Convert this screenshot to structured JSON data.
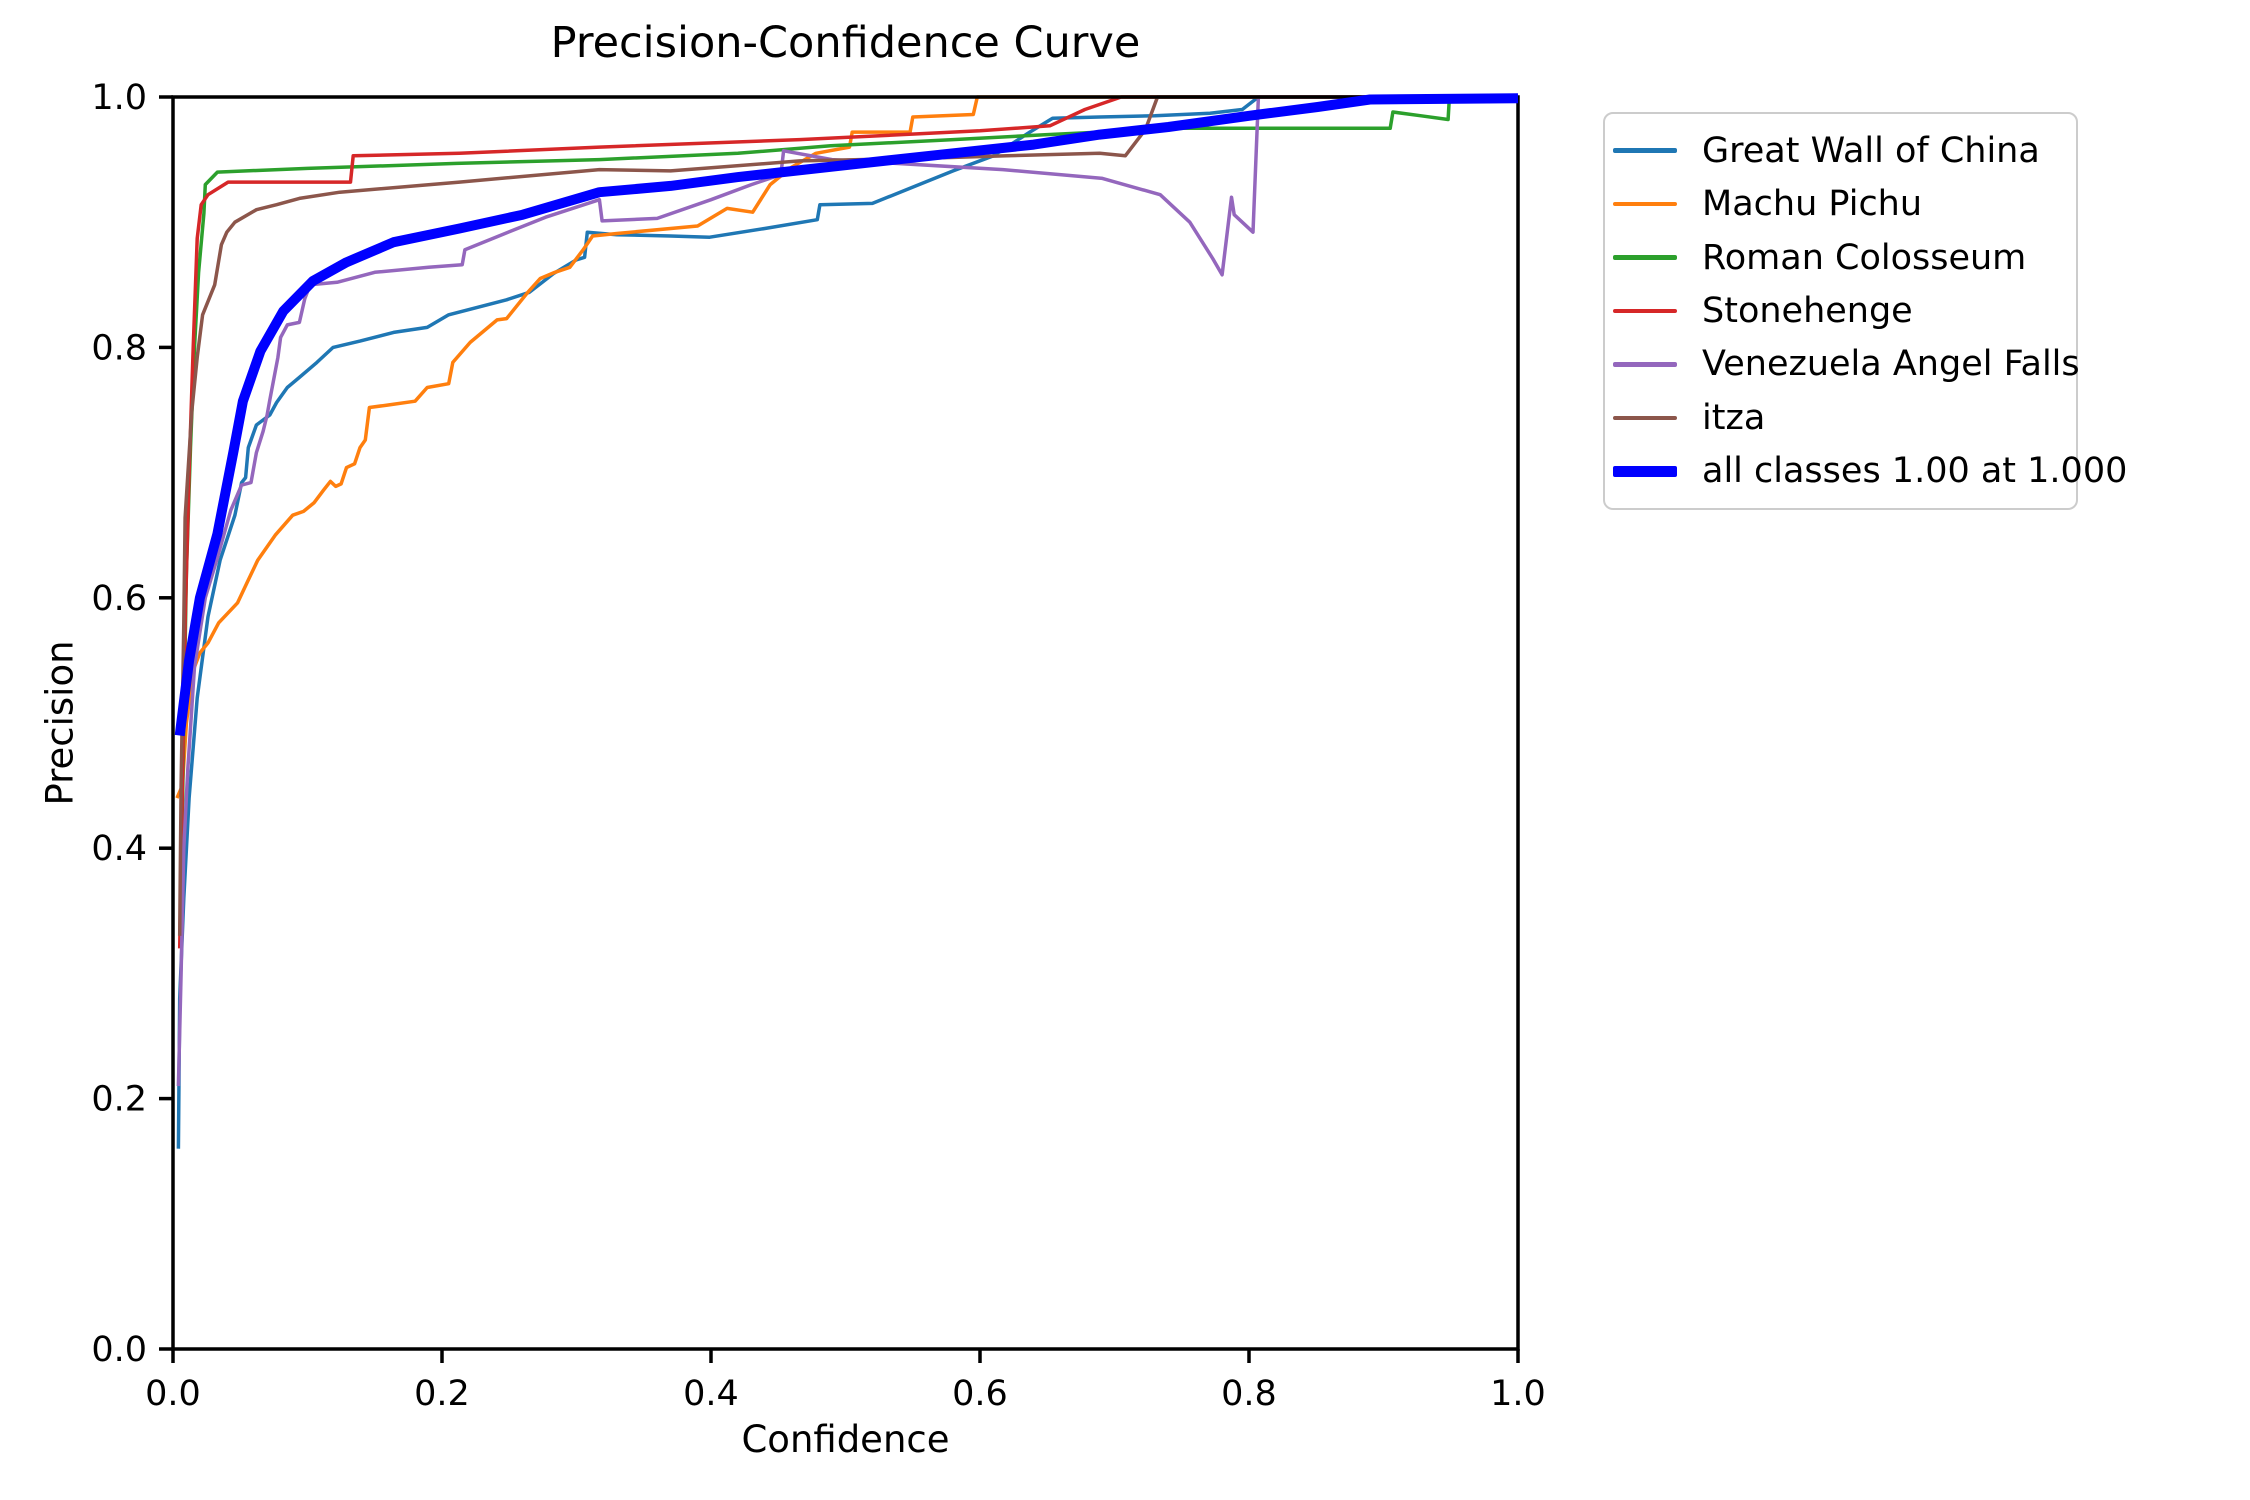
{
  "chart_data": {
    "type": "line",
    "title": "Precision-Confidence Curve",
    "xlabel": "Confidence",
    "ylabel": "Precision",
    "xlim": [
      0.0,
      1.0
    ],
    "ylim": [
      0.0,
      1.0
    ],
    "grid": false,
    "legend_position": "outside-right",
    "x_ticks": [
      {
        "value": 0.0,
        "label": "0.0"
      },
      {
        "value": 0.2,
        "label": "0.2"
      },
      {
        "value": 0.4,
        "label": "0.4"
      },
      {
        "value": 0.6,
        "label": "0.6"
      },
      {
        "value": 0.8,
        "label": "0.8"
      },
      {
        "value": 1.0,
        "label": "1.0"
      }
    ],
    "y_ticks": [
      {
        "value": 0.0,
        "label": "0.0"
      },
      {
        "value": 0.2,
        "label": "0.2"
      },
      {
        "value": 0.4,
        "label": "0.4"
      },
      {
        "value": 0.6,
        "label": "0.6"
      },
      {
        "value": 0.8,
        "label": "0.8"
      },
      {
        "value": 1.0,
        "label": "1.0"
      }
    ],
    "axis_color": "#000000",
    "series": [
      {
        "name": "Great Wall of China",
        "color": "#1f77b4",
        "line_width": 3.5,
        "points": [
          [
            0.004,
            0.16
          ],
          [
            0.005,
            0.28
          ],
          [
            0.008,
            0.36
          ],
          [
            0.012,
            0.44
          ],
          [
            0.018,
            0.52
          ],
          [
            0.026,
            0.585
          ],
          [
            0.035,
            0.63
          ],
          [
            0.046,
            0.666
          ],
          [
            0.051,
            0.692
          ],
          [
            0.054,
            0.696
          ],
          [
            0.056,
            0.72
          ],
          [
            0.062,
            0.738
          ],
          [
            0.072,
            0.746
          ],
          [
            0.077,
            0.756
          ],
          [
            0.085,
            0.768
          ],
          [
            0.094,
            0.776
          ],
          [
            0.107,
            0.788
          ],
          [
            0.119,
            0.8
          ],
          [
            0.139,
            0.805
          ],
          [
            0.164,
            0.812
          ],
          [
            0.189,
            0.816
          ],
          [
            0.205,
            0.826
          ],
          [
            0.248,
            0.838
          ],
          [
            0.265,
            0.844
          ],
          [
            0.283,
            0.859
          ],
          [
            0.3,
            0.87
          ],
          [
            0.306,
            0.872
          ],
          [
            0.308,
            0.892
          ],
          [
            0.33,
            0.89
          ],
          [
            0.37,
            0.889
          ],
          [
            0.399,
            0.888
          ],
          [
            0.44,
            0.895
          ],
          [
            0.479,
            0.902
          ],
          [
            0.481,
            0.914
          ],
          [
            0.52,
            0.915
          ],
          [
            0.55,
            0.928
          ],
          [
            0.58,
            0.941
          ],
          [
            0.61,
            0.953
          ],
          [
            0.637,
            0.972
          ],
          [
            0.654,
            0.983
          ],
          [
            0.689,
            0.984
          ],
          [
            0.73,
            0.985
          ],
          [
            0.771,
            0.987
          ],
          [
            0.795,
            0.99
          ],
          [
            0.807,
            1.0
          ],
          [
            1.0,
            1.0
          ]
        ]
      },
      {
        "name": "Machu Pichu",
        "color": "#ff7f0e",
        "line_width": 3.5,
        "points": [
          [
            0.003,
            0.44
          ],
          [
            0.007,
            0.45
          ],
          [
            0.01,
            0.5
          ],
          [
            0.015,
            0.542
          ],
          [
            0.02,
            0.556
          ],
          [
            0.026,
            0.564
          ],
          [
            0.034,
            0.58
          ],
          [
            0.048,
            0.596
          ],
          [
            0.055,
            0.612
          ],
          [
            0.063,
            0.63
          ],
          [
            0.076,
            0.65
          ],
          [
            0.089,
            0.666
          ],
          [
            0.097,
            0.669
          ],
          [
            0.105,
            0.676
          ],
          [
            0.112,
            0.686
          ],
          [
            0.117,
            0.693
          ],
          [
            0.121,
            0.689
          ],
          [
            0.125,
            0.691
          ],
          [
            0.129,
            0.704
          ],
          [
            0.135,
            0.707
          ],
          [
            0.139,
            0.72
          ],
          [
            0.143,
            0.726
          ],
          [
            0.146,
            0.752
          ],
          [
            0.16,
            0.754
          ],
          [
            0.18,
            0.757
          ],
          [
            0.189,
            0.768
          ],
          [
            0.205,
            0.771
          ],
          [
            0.208,
            0.788
          ],
          [
            0.221,
            0.804
          ],
          [
            0.241,
            0.822
          ],
          [
            0.248,
            0.823
          ],
          [
            0.263,
            0.843
          ],
          [
            0.273,
            0.855
          ],
          [
            0.284,
            0.86
          ],
          [
            0.295,
            0.864
          ],
          [
            0.305,
            0.878
          ],
          [
            0.312,
            0.889
          ],
          [
            0.33,
            0.891
          ],
          [
            0.39,
            0.897
          ],
          [
            0.412,
            0.911
          ],
          [
            0.431,
            0.908
          ],
          [
            0.444,
            0.93
          ],
          [
            0.46,
            0.944
          ],
          [
            0.478,
            0.955
          ],
          [
            0.503,
            0.96
          ],
          [
            0.505,
            0.972
          ],
          [
            0.548,
            0.972
          ],
          [
            0.55,
            0.984
          ],
          [
            0.595,
            0.986
          ],
          [
            0.598,
            1.0
          ],
          [
            1.0,
            1.0
          ]
        ]
      },
      {
        "name": "Roman Colosseum",
        "color": "#2ca02c",
        "line_width": 3.5,
        "points": [
          [
            0.006,
            0.36
          ],
          [
            0.008,
            0.5
          ],
          [
            0.01,
            0.62
          ],
          [
            0.013,
            0.72
          ],
          [
            0.016,
            0.8
          ],
          [
            0.019,
            0.86
          ],
          [
            0.023,
            0.907
          ],
          [
            0.024,
            0.93
          ],
          [
            0.033,
            0.94
          ],
          [
            0.1,
            0.943
          ],
          [
            0.211,
            0.947
          ],
          [
            0.317,
            0.95
          ],
          [
            0.42,
            0.955
          ],
          [
            0.489,
            0.961
          ],
          [
            0.58,
            0.966
          ],
          [
            0.65,
            0.97
          ],
          [
            0.689,
            0.972
          ],
          [
            0.751,
            0.975
          ],
          [
            0.85,
            0.975
          ],
          [
            0.905,
            0.975
          ],
          [
            0.907,
            0.988
          ],
          [
            0.928,
            0.985
          ],
          [
            0.948,
            0.982
          ],
          [
            0.949,
            1.0
          ],
          [
            1.0,
            1.0
          ]
        ]
      },
      {
        "name": "Stonehenge",
        "color": "#d62728",
        "line_width": 3.5,
        "points": [
          [
            0.005,
            0.32
          ],
          [
            0.007,
            0.45
          ],
          [
            0.009,
            0.58
          ],
          [
            0.012,
            0.7
          ],
          [
            0.015,
            0.8
          ],
          [
            0.018,
            0.887
          ],
          [
            0.021,
            0.914
          ],
          [
            0.026,
            0.922
          ],
          [
            0.041,
            0.932
          ],
          [
            0.132,
            0.932
          ],
          [
            0.134,
            0.953
          ],
          [
            0.213,
            0.955
          ],
          [
            0.317,
            0.96
          ],
          [
            0.466,
            0.966
          ],
          [
            0.6,
            0.973
          ],
          [
            0.652,
            0.977
          ],
          [
            0.678,
            0.99
          ],
          [
            0.705,
            1.0
          ],
          [
            1.0,
            1.0
          ]
        ]
      },
      {
        "name": "Venezuela Angel Falls",
        "color": "#9467bd",
        "line_width": 3.5,
        "points": [
          [
            0.004,
            0.21
          ],
          [
            0.006,
            0.3
          ],
          [
            0.008,
            0.4
          ],
          [
            0.011,
            0.463
          ],
          [
            0.016,
            0.545
          ],
          [
            0.024,
            0.6
          ],
          [
            0.033,
            0.632
          ],
          [
            0.043,
            0.67
          ],
          [
            0.051,
            0.69
          ],
          [
            0.058,
            0.692
          ],
          [
            0.062,
            0.716
          ],
          [
            0.067,
            0.733
          ],
          [
            0.07,
            0.746
          ],
          [
            0.072,
            0.758
          ],
          [
            0.078,
            0.792
          ],
          [
            0.08,
            0.808
          ],
          [
            0.085,
            0.818
          ],
          [
            0.094,
            0.82
          ],
          [
            0.098,
            0.839
          ],
          [
            0.102,
            0.85
          ],
          [
            0.122,
            0.852
          ],
          [
            0.15,
            0.86
          ],
          [
            0.19,
            0.864
          ],
          [
            0.215,
            0.866
          ],
          [
            0.217,
            0.878
          ],
          [
            0.24,
            0.888
          ],
          [
            0.277,
            0.904
          ],
          [
            0.317,
            0.918
          ],
          [
            0.319,
            0.901
          ],
          [
            0.36,
            0.903
          ],
          [
            0.4,
            0.918
          ],
          [
            0.43,
            0.93
          ],
          [
            0.452,
            0.938
          ],
          [
            0.454,
            0.957
          ],
          [
            0.49,
            0.95
          ],
          [
            0.617,
            0.942
          ],
          [
            0.691,
            0.935
          ],
          [
            0.734,
            0.922
          ],
          [
            0.756,
            0.9
          ],
          [
            0.773,
            0.871
          ],
          [
            0.78,
            0.858
          ],
          [
            0.787,
            0.92
          ],
          [
            0.789,
            0.906
          ],
          [
            0.803,
            0.892
          ],
          [
            0.807,
            1.0
          ],
          [
            1.0,
            1.0
          ]
        ]
      },
      {
        "name": "itza",
        "color": "#8c564b",
        "line_width": 3.5,
        "points": [
          [
            0.005,
            0.33
          ],
          [
            0.006,
            0.45
          ],
          [
            0.008,
            0.58
          ],
          [
            0.009,
            0.664
          ],
          [
            0.014,
            0.749
          ],
          [
            0.018,
            0.792
          ],
          [
            0.022,
            0.826
          ],
          [
            0.031,
            0.85
          ],
          [
            0.036,
            0.882
          ],
          [
            0.04,
            0.892
          ],
          [
            0.046,
            0.9
          ],
          [
            0.062,
            0.91
          ],
          [
            0.077,
            0.914
          ],
          [
            0.094,
            0.919
          ],
          [
            0.124,
            0.924
          ],
          [
            0.213,
            0.932
          ],
          [
            0.317,
            0.942
          ],
          [
            0.37,
            0.941
          ],
          [
            0.466,
            0.949
          ],
          [
            0.56,
            0.951
          ],
          [
            0.62,
            0.953
          ],
          [
            0.689,
            0.955
          ],
          [
            0.708,
            0.953
          ],
          [
            0.723,
            0.974
          ],
          [
            0.732,
            1.0
          ],
          [
            1.0,
            1.0
          ]
        ]
      },
      {
        "name": "all classes 1.00 at 1.000",
        "color": "#0000ff",
        "line_width": 10,
        "points": [
          [
            0.005,
            0.49
          ],
          [
            0.012,
            0.55
          ],
          [
            0.02,
            0.6
          ],
          [
            0.033,
            0.651
          ],
          [
            0.045,
            0.717
          ],
          [
            0.052,
            0.757
          ],
          [
            0.065,
            0.797
          ],
          [
            0.082,
            0.829
          ],
          [
            0.104,
            0.853
          ],
          [
            0.129,
            0.868
          ],
          [
            0.164,
            0.884
          ],
          [
            0.213,
            0.895
          ],
          [
            0.26,
            0.906
          ],
          [
            0.317,
            0.924
          ],
          [
            0.37,
            0.929
          ],
          [
            0.42,
            0.936
          ],
          [
            0.47,
            0.942
          ],
          [
            0.52,
            0.948
          ],
          [
            0.58,
            0.955
          ],
          [
            0.64,
            0.962
          ],
          [
            0.689,
            0.97
          ],
          [
            0.74,
            0.976
          ],
          [
            0.8,
            0.985
          ],
          [
            0.851,
            0.992
          ],
          [
            0.89,
            0.998
          ],
          [
            1.0,
            0.999
          ]
        ]
      }
    ]
  }
}
